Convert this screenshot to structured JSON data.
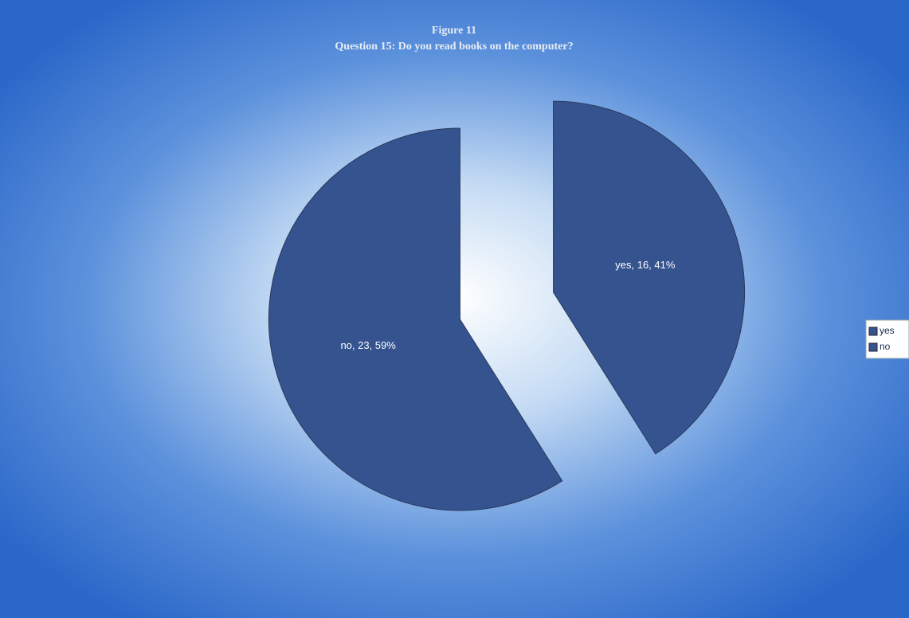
{
  "chart_data": {
    "type": "pie",
    "title": "Figure 11",
    "subtitle": "Question 15: Do you read books on the computer?",
    "categories": [
      "yes",
      "no"
    ],
    "values": [
      16,
      23
    ],
    "value_labels": [
      "yes, 16, 41%",
      "no, 23, 59%"
    ],
    "colors": [
      "#34538f",
      "#34538f"
    ],
    "legend": "right"
  }
}
